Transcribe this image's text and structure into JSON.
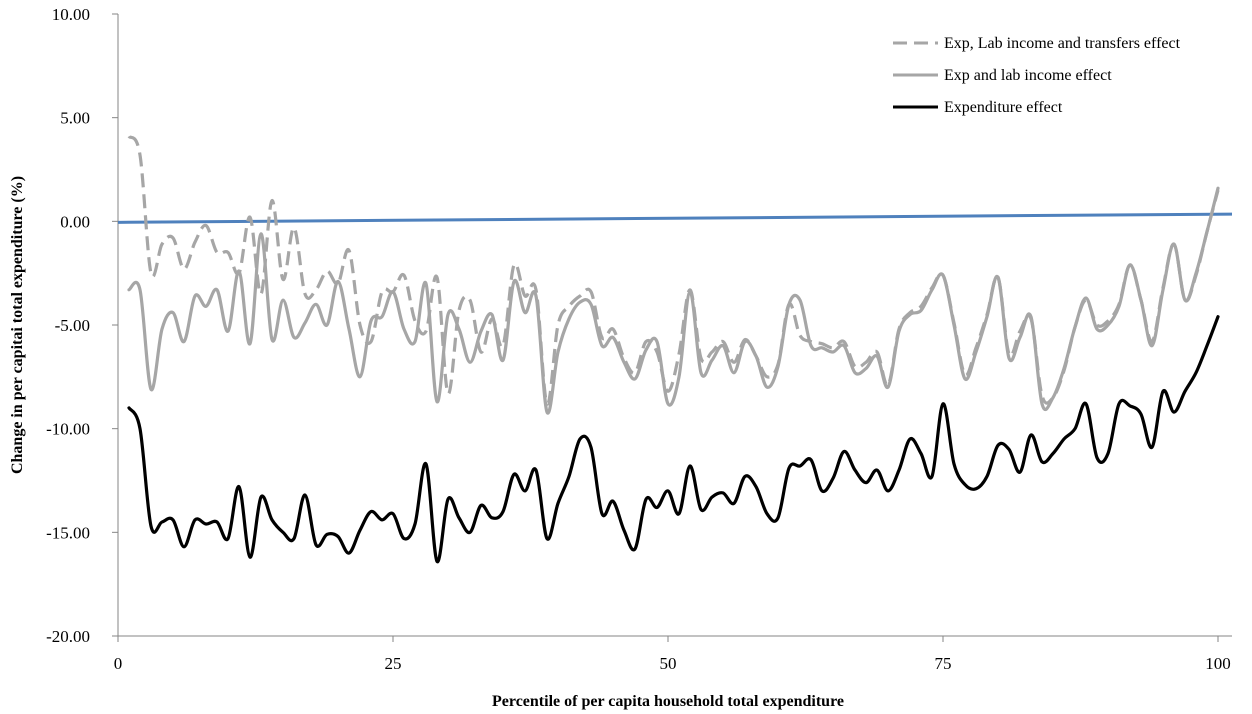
{
  "chart_data": {
    "type": "line",
    "title": "",
    "xlabel": "Percentile of per capita household total expenditure",
    "ylabel": "Change in per capitai total expenditure (%)",
    "xlim": [
      0,
      100
    ],
    "ylim": [
      -20,
      10
    ],
    "x_ticks": [
      0,
      25,
      50,
      75,
      100
    ],
    "x_tick_labels": [
      "0",
      "25",
      "50",
      "75",
      "100"
    ],
    "y_ticks": [
      10,
      5,
      0,
      -5,
      -10,
      -15,
      -20
    ],
    "y_tick_labels": [
      "10.00",
      "5.00",
      "0.00",
      "-5.00",
      "-10.00",
      "-15.00",
      "-20.00"
    ],
    "grid": false,
    "legend_position": "top-right",
    "baseline": {
      "y_start": -0.05,
      "y_end": 0.35,
      "color": "#4f81bd"
    },
    "series": [
      {
        "name": "Exp, Lab income and transfers effect",
        "color": "#a6a6a6",
        "dash": true,
        "x": [
          1,
          2,
          3,
          4,
          5,
          6,
          7,
          8,
          9,
          10,
          11,
          12,
          13,
          14,
          15,
          16,
          17,
          18,
          19,
          20,
          21,
          22,
          23,
          24,
          25,
          26,
          27,
          28,
          29,
          30,
          31,
          32,
          33,
          34,
          35,
          36,
          37,
          38,
          39,
          40,
          41,
          42,
          43,
          44,
          45,
          46,
          47,
          48,
          49,
          50,
          51,
          52,
          53,
          54,
          55,
          56,
          57,
          58,
          59,
          60,
          61,
          62,
          63,
          64,
          65,
          66,
          67,
          68,
          69,
          70,
          71,
          72,
          73,
          74,
          75,
          76,
          77,
          78,
          79,
          80,
          81,
          82,
          83,
          84,
          85,
          86,
          87,
          88,
          89,
          90,
          91,
          92,
          93,
          94,
          95,
          96,
          97,
          98,
          99,
          100
        ],
        "y": [
          4.1,
          3.2,
          -2.5,
          -1.1,
          -0.8,
          -2.3,
          -1.0,
          -0.2,
          -1.5,
          -1.5,
          -2.5,
          0.2,
          -3.5,
          1.0,
          -2.8,
          -0.3,
          -3.5,
          -3.3,
          -2.4,
          -3.0,
          -1.4,
          -5.0,
          -5.8,
          -3.4,
          -3.4,
          -2.6,
          -4.8,
          -5.3,
          -2.7,
          -8.3,
          -4.3,
          -3.8,
          -6.3,
          -4.7,
          -6.0,
          -2.1,
          -3.6,
          -3.3,
          -8.8,
          -5.0,
          -4.1,
          -3.6,
          -3.4,
          -5.6,
          -5.2,
          -6.6,
          -7.3,
          -5.8,
          -6.3,
          -8.2,
          -6.4,
          -3.3,
          -6.6,
          -6.3,
          -5.8,
          -6.8,
          -5.7,
          -6.5,
          -7.5,
          -6.9,
          -4.0,
          -5.5,
          -5.8,
          -5.9,
          -6.1,
          -5.8,
          -7.0,
          -6.8,
          -6.3,
          -7.9,
          -5.2,
          -4.4,
          -4.1,
          -3.2,
          -2.6,
          -4.9,
          -7.4,
          -6.1,
          -4.5,
          -2.7,
          -6.4,
          -5.3,
          -4.7,
          -8.4,
          -8.5,
          -7.2,
          -5.1,
          -3.8,
          -5.0,
          -4.8,
          -4.0,
          -2.1,
          -3.8,
          -5.8,
          -3.2,
          -1.1,
          -3.8,
          -2.6,
          -0.5,
          1.5
        ]
      },
      {
        "name": "Exp and lab income effect",
        "color": "#a6a6a6",
        "dash": false,
        "x": [
          1,
          2,
          3,
          4,
          5,
          6,
          7,
          8,
          9,
          10,
          11,
          12,
          13,
          14,
          15,
          16,
          17,
          18,
          19,
          20,
          21,
          22,
          23,
          24,
          25,
          26,
          27,
          28,
          29,
          30,
          31,
          32,
          33,
          34,
          35,
          36,
          37,
          38,
          39,
          40,
          41,
          42,
          43,
          44,
          45,
          46,
          47,
          48,
          49,
          50,
          51,
          52,
          53,
          54,
          55,
          56,
          57,
          58,
          59,
          60,
          61,
          62,
          63,
          64,
          65,
          66,
          67,
          68,
          69,
          70,
          71,
          72,
          73,
          74,
          75,
          76,
          77,
          78,
          79,
          80,
          81,
          82,
          83,
          84,
          85,
          86,
          87,
          88,
          89,
          90,
          91,
          92,
          93,
          94,
          95,
          96,
          97,
          98,
          99,
          100
        ],
        "y": [
          -3.3,
          -3.3,
          -8.1,
          -5.2,
          -4.4,
          -5.8,
          -3.6,
          -4.1,
          -3.3,
          -5.3,
          -2.4,
          -5.9,
          -0.6,
          -5.7,
          -3.8,
          -5.6,
          -4.9,
          -4.0,
          -5.0,
          -2.9,
          -5.2,
          -7.5,
          -4.8,
          -4.6,
          -3.4,
          -5.2,
          -5.8,
          -3.0,
          -8.7,
          -4.5,
          -5.2,
          -6.8,
          -5.3,
          -4.5,
          -6.7,
          -2.9,
          -4.4,
          -3.6,
          -9.2,
          -6.3,
          -4.7,
          -3.9,
          -4.0,
          -6.0,
          -5.6,
          -6.8,
          -7.6,
          -6.2,
          -5.8,
          -8.8,
          -7.5,
          -3.4,
          -7.3,
          -6.7,
          -6.0,
          -7.3,
          -5.8,
          -6.5,
          -8.0,
          -7.0,
          -4.0,
          -3.8,
          -6.0,
          -6.1,
          -6.3,
          -6.0,
          -7.3,
          -7.1,
          -6.5,
          -8.0,
          -5.3,
          -4.5,
          -4.3,
          -3.3,
          -2.6,
          -5.0,
          -7.6,
          -6.3,
          -4.6,
          -2.7,
          -6.6,
          -5.6,
          -4.6,
          -8.8,
          -8.5,
          -7.1,
          -5.1,
          -3.7,
          -5.2,
          -5.0,
          -4.1,
          -2.1,
          -3.8,
          -6.0,
          -3.3,
          -1.1,
          -3.8,
          -2.5,
          -0.5,
          1.6
        ]
      },
      {
        "name": "Expenditure effect",
        "color": "#000000",
        "dash": false,
        "x": [
          1,
          2,
          3,
          4,
          5,
          6,
          7,
          8,
          9,
          10,
          11,
          12,
          13,
          14,
          15,
          16,
          17,
          18,
          19,
          20,
          21,
          22,
          23,
          24,
          25,
          26,
          27,
          28,
          29,
          30,
          31,
          32,
          33,
          34,
          35,
          36,
          37,
          38,
          39,
          40,
          41,
          42,
          43,
          44,
          45,
          46,
          47,
          48,
          49,
          50,
          51,
          52,
          53,
          54,
          55,
          56,
          57,
          58,
          59,
          60,
          61,
          62,
          63,
          64,
          65,
          66,
          67,
          68,
          69,
          70,
          71,
          72,
          73,
          74,
          75,
          76,
          77,
          78,
          79,
          80,
          81,
          82,
          83,
          84,
          85,
          86,
          87,
          88,
          89,
          90,
          91,
          92,
          93,
          94,
          95,
          96,
          97,
          98,
          99,
          100
        ],
        "y": [
          -9.0,
          -10.0,
          -14.7,
          -14.5,
          -14.4,
          -15.7,
          -14.4,
          -14.6,
          -14.5,
          -15.3,
          -12.8,
          -16.2,
          -13.3,
          -14.4,
          -15.0,
          -15.3,
          -13.2,
          -15.6,
          -15.1,
          -15.2,
          -16.0,
          -14.9,
          -14.0,
          -14.4,
          -14.1,
          -15.3,
          -14.6,
          -11.7,
          -16.4,
          -13.4,
          -14.3,
          -15.0,
          -13.7,
          -14.3,
          -14.0,
          -12.2,
          -13.0,
          -12.0,
          -15.3,
          -13.6,
          -12.3,
          -10.5,
          -10.9,
          -14.1,
          -13.5,
          -14.9,
          -15.8,
          -13.4,
          -13.8,
          -13.0,
          -14.1,
          -11.8,
          -13.9,
          -13.3,
          -13.1,
          -13.6,
          -12.3,
          -12.8,
          -14.1,
          -14.3,
          -11.9,
          -11.8,
          -11.5,
          -13.0,
          -12.4,
          -11.1,
          -12.0,
          -12.6,
          -12.0,
          -13.0,
          -12.0,
          -10.5,
          -11.2,
          -12.3,
          -8.8,
          -11.7,
          -12.7,
          -12.9,
          -12.3,
          -10.8,
          -11.0,
          -12.1,
          -10.3,
          -11.6,
          -11.2,
          -10.5,
          -10.0,
          -8.8,
          -11.4,
          -11.2,
          -8.8,
          -8.9,
          -9.3,
          -10.9,
          -8.2,
          -9.2,
          -8.2,
          -7.3,
          -6.0,
          -4.6
        ]
      }
    ]
  }
}
